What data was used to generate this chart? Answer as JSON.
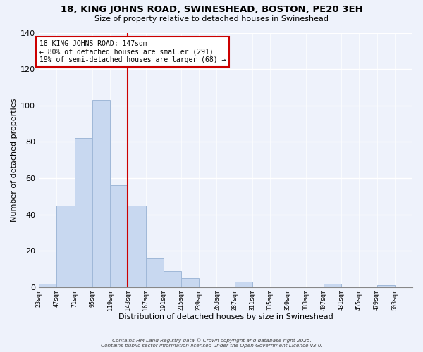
{
  "title": "18, KING JOHNS ROAD, SWINESHEAD, BOSTON, PE20 3EH",
  "subtitle": "Size of property relative to detached houses in Swineshead",
  "xlabel": "Distribution of detached houses by size in Swineshead",
  "ylabel": "Number of detached properties",
  "bar_edges": [
    23,
    47,
    71,
    95,
    119,
    143,
    167,
    191,
    215,
    239,
    263,
    287,
    311,
    335,
    359,
    383,
    407,
    431,
    455,
    479,
    503
  ],
  "bar_heights": [
    2,
    45,
    82,
    103,
    56,
    45,
    16,
    9,
    5,
    0,
    0,
    3,
    0,
    0,
    0,
    0,
    2,
    0,
    0,
    1,
    0
  ],
  "bar_color": "#c8d8f0",
  "bar_edgecolor": "#a0b8d8",
  "vline_x": 143,
  "vline_color": "#cc0000",
  "annotation_title": "18 KING JOHNS ROAD: 147sqm",
  "annotation_line1": "← 80% of detached houses are smaller (291)",
  "annotation_line2": "19% of semi-detached houses are larger (68) →",
  "annotation_box_color": "#ffffff",
  "annotation_box_edgecolor": "#cc0000",
  "ylim": [
    0,
    140
  ],
  "yticks": [
    0,
    20,
    40,
    60,
    80,
    100,
    120,
    140
  ],
  "tick_labels": [
    "23sqm",
    "47sqm",
    "71sqm",
    "95sqm",
    "119sqm",
    "143sqm",
    "167sqm",
    "191sqm",
    "215sqm",
    "239sqm",
    "263sqm",
    "287sqm",
    "311sqm",
    "335sqm",
    "359sqm",
    "383sqm",
    "407sqm",
    "431sqm",
    "455sqm",
    "479sqm",
    "503sqm"
  ],
  "footnote1": "Contains HM Land Registry data © Crown copyright and database right 2025.",
  "footnote2": "Contains public sector information licensed under the Open Government Licence v3.0.",
  "bg_color": "#eef2fb"
}
